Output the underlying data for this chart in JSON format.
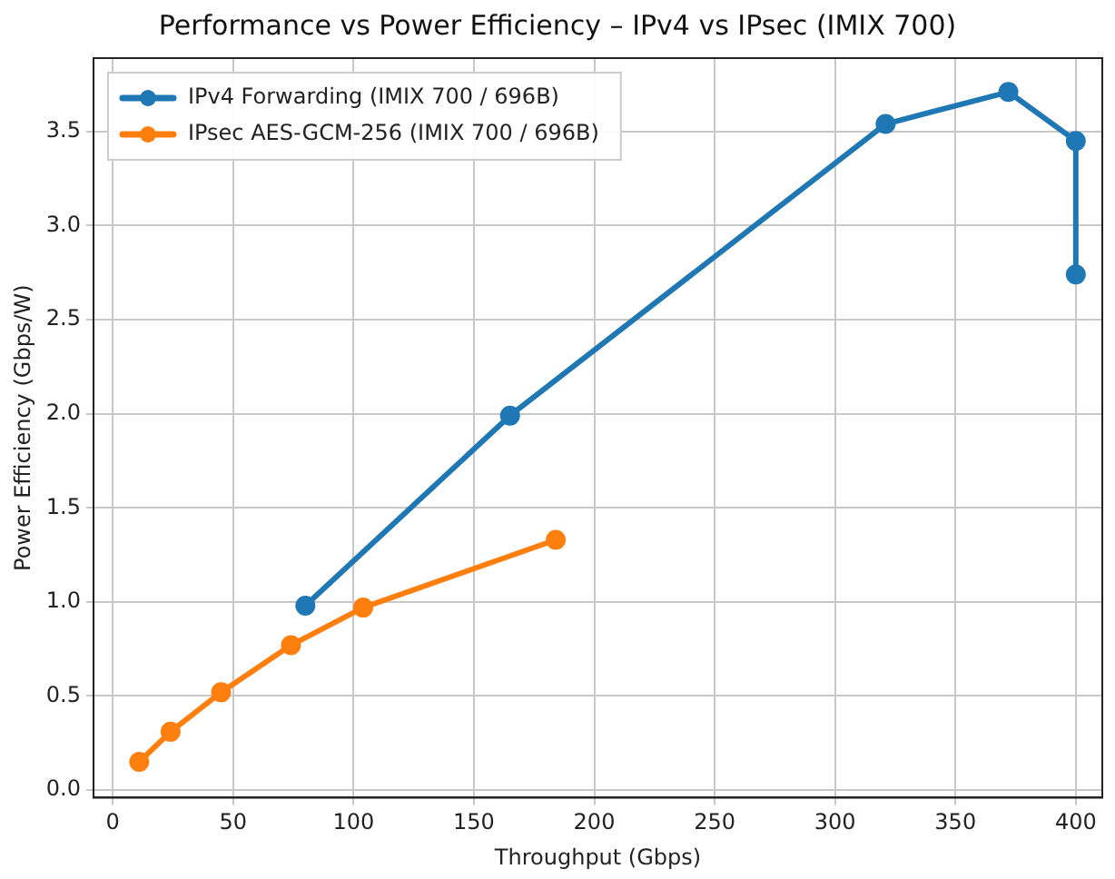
{
  "chart_data": {
    "type": "line",
    "title": "Performance vs Power Efficiency – IPv4 vs IPsec (IMIX 700)",
    "xlabel": "Throughput (Gbps)",
    "ylabel": "Power Efficiency (Gbps/W)",
    "series": [
      {
        "name": "IPv4 Forwarding (IMIX 700 / 696B)",
        "color": "#1f77b4",
        "x": [
          80,
          165,
          321,
          372,
          400,
          400
        ],
        "values": [
          0.98,
          1.99,
          3.54,
          3.71,
          3.45,
          2.74
        ]
      },
      {
        "name": "IPsec AES-GCM-256 (IMIX 700 / 696B)",
        "color": "#ff7f0e",
        "x": [
          11,
          24,
          45,
          74,
          104,
          184
        ],
        "values": [
          0.15,
          0.31,
          0.52,
          0.77,
          0.97,
          1.33
        ]
      }
    ],
    "xlim": [
      -8,
      411
    ],
    "xticks": [
      0,
      50,
      100,
      150,
      200,
      250,
      300,
      350,
      400
    ],
    "ylim": [
      -0.04,
      3.89
    ],
    "yticks": [
      {
        "value": 0,
        "label": "0.0"
      },
      {
        "value": 0.5,
        "label": "0.5"
      },
      {
        "value": 1,
        "label": "1.0"
      },
      {
        "value": 1.5,
        "label": "1.5"
      },
      {
        "value": 2,
        "label": "2.0"
      },
      {
        "value": 2.5,
        "label": "2.5"
      },
      {
        "value": 3,
        "label": "3.0"
      },
      {
        "value": 3.5,
        "label": "3.5"
      }
    ],
    "grid": true,
    "legend": "top left",
    "marker": "circle",
    "line_style": "solid"
  }
}
